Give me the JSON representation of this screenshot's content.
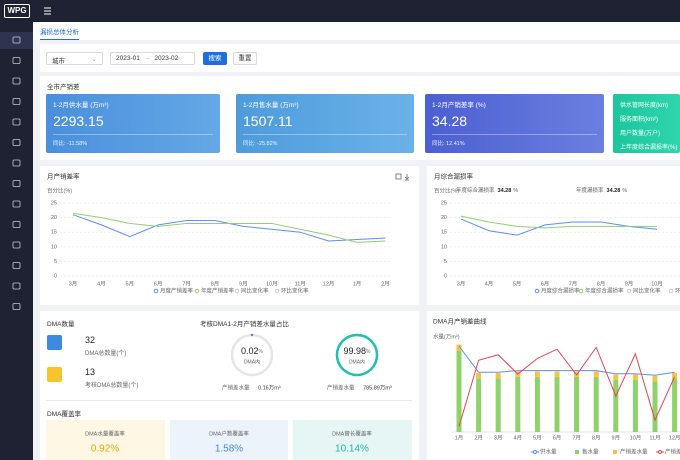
{
  "header": {
    "logo": "WPG"
  },
  "tab": "漏损总体分析",
  "filters": {
    "city": "城市",
    "start_month": "2023-01",
    "end_month": "2023-02",
    "search": "搜索",
    "reset": "重置"
  },
  "summary": {
    "title": "全市产销差",
    "cards": [
      {
        "label": "1-2月供水量 (万m³)",
        "value": "2293.15",
        "change": "同比: -11.58%"
      },
      {
        "label": "1-2月售水量 (万m³)",
        "value": "1507.11",
        "change": "同比: -25.82%"
      },
      {
        "label": "1-2月产销差率 (%)",
        "value": "34.28",
        "change": "同比: 12.41%"
      }
    ],
    "info": [
      "供水管网长度(km)",
      "服务面积(km²)",
      "用户数量(万户)",
      "上年度综合漏损率(%)"
    ]
  },
  "monthly_loss_chart": {
    "type": "line",
    "title": "月产销差率",
    "y_label": "百分比(%)",
    "categories": [
      "3月",
      "4月",
      "5月",
      "6月",
      "7月",
      "8月",
      "9月",
      "10月",
      "11月",
      "12月",
      "1月",
      "2月"
    ],
    "ylim": [
      0,
      25
    ],
    "yticks": [
      0,
      5,
      10,
      15,
      20,
      25
    ],
    "grid": true,
    "series": [
      {
        "name": "月度产销差率",
        "color": "#5b8ff9",
        "values": [
          21,
          17.5,
          13.5,
          17.5,
          19,
          19,
          17,
          16,
          15,
          12,
          12.5,
          13
        ]
      },
      {
        "name": "年度产销差率",
        "color": "#8fd16a",
        "values": [
          21.5,
          20,
          18,
          17,
          18,
          18,
          18,
          18,
          16,
          14,
          11.5,
          12
        ]
      },
      {
        "name": "同比变化率",
        "color": "#cccccc",
        "values": [
          null,
          null,
          null,
          null,
          null,
          null,
          null,
          null,
          null,
          null,
          null,
          null
        ]
      },
      {
        "name": "环比变化率",
        "color": "#cccccc",
        "values": [
          null,
          null,
          null,
          null,
          null,
          null,
          null,
          null,
          null,
          null,
          null,
          null
        ]
      }
    ]
  },
  "monthly_leak_chart": {
    "type": "line",
    "title": "月综合漏损率",
    "y_label": "百分比(%)",
    "annotations": [
      {
        "label": "年度综合漏损率",
        "value": "34.28",
        "unit": "%"
      },
      {
        "label": "年度漏损率",
        "value": "34.28",
        "unit": "%"
      }
    ],
    "categories": [
      "3月",
      "4月",
      "5月",
      "6月",
      "7月",
      "8月",
      "9月",
      "10月"
    ],
    "ylim": [
      0,
      25
    ],
    "yticks": [
      0,
      5,
      10,
      15,
      20,
      25
    ],
    "grid": true,
    "series": [
      {
        "name": "月度综合漏损率",
        "color": "#5b8ff9",
        "values": [
          19.5,
          15.5,
          14,
          17.5,
          18.5,
          18.5,
          17,
          16
        ]
      },
      {
        "name": "年度综合漏损率",
        "color": "#8fd16a",
        "values": [
          20.5,
          18.5,
          17,
          16.5,
          17,
          17,
          17,
          17
        ]
      },
      {
        "name": "同比变化率",
        "color": "#cccccc",
        "values": [
          null,
          null,
          null,
          null,
          null,
          null,
          null,
          null
        ]
      },
      {
        "name": "环比变化率",
        "color": "#cccccc",
        "values": [
          null,
          null,
          null,
          null,
          null,
          null,
          null,
          null
        ]
      }
    ]
  },
  "dma": {
    "title": "DMA数量",
    "counts": [
      {
        "value": "32",
        "label": "DMA总数量(个)"
      },
      {
        "value": "13",
        "label": "考核DMA总数量(个)"
      }
    ],
    "share": {
      "title": "考核DMA1-2月产销差水量占比",
      "donuts": [
        {
          "value": 0.02,
          "unit": "%",
          "label": "DMA内",
          "caption": "产销差水量",
          "amount": "0.16万m³",
          "color": "#4a90e2"
        },
        {
          "value": 99.98,
          "unit": "%",
          "label": "DMA内",
          "caption": "产销差水量",
          "amount": "785.89万m³",
          "color": "#22c1ae"
        }
      ]
    }
  },
  "coverage": {
    "title": "DMA覆盖率",
    "cards": [
      {
        "label": "DMA水量覆盖率",
        "value": "0.92%"
      },
      {
        "label": "DMA户数覆盖率",
        "value": "1.58%"
      },
      {
        "label": "DMA管长覆盖率",
        "value": "10.14%"
      }
    ]
  },
  "dma_chart": {
    "type": "bar-line",
    "title": "DMA月产销差曲线",
    "y_label": "水量(万m³)",
    "categories": [
      "1月",
      "2月",
      "3月",
      "4月",
      "5月",
      "6月",
      "7月",
      "8月",
      "9月",
      "10月",
      "11月",
      "12月"
    ],
    "ylim": [
      0,
      6
    ],
    "y2lim": [
      0,
      100
    ],
    "series": [
      {
        "name": "供水量",
        "type": "line",
        "color": "#5b8ff9",
        "values": [
          5.6,
          3.9,
          3.9,
          4.0,
          4.0,
          4.0,
          4.0,
          4.0,
          3.8,
          3.8,
          3.7,
          3.9
        ]
      },
      {
        "name": "售水量",
        "type": "bar",
        "color": "#8fd16a",
        "values": [
          5.3,
          3.5,
          3.5,
          3.6,
          3.6,
          3.6,
          3.6,
          3.6,
          3.4,
          3.4,
          3.3,
          3.5
        ]
      },
      {
        "name": "产销差水量",
        "type": "bar",
        "color": "#f6c343",
        "values": [
          0.4,
          0.35,
          0.35,
          0.35,
          0.35,
          0.35,
          0.35,
          0.35,
          0.35,
          0.35,
          0.35,
          0.35
        ]
      },
      {
        "name": "产销差率",
        "type": "line",
        "axis": "y2",
        "color": "#e8474c",
        "values": [
          6,
          78,
          84,
          63,
          80,
          90,
          62,
          92,
          39,
          85,
          13,
          60
        ]
      }
    ]
  }
}
